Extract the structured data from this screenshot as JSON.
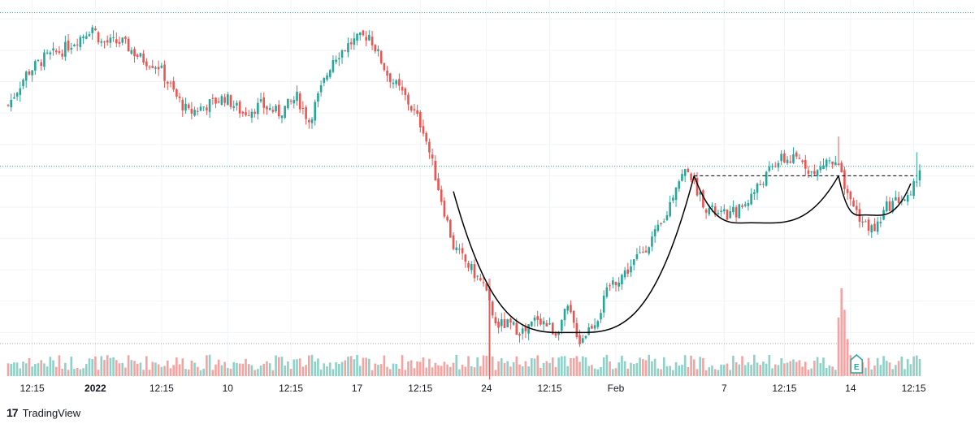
{
  "brand": {
    "logo": "17",
    "name": "TradingView"
  },
  "colors": {
    "up": "#26a69a",
    "down": "#ef5350",
    "vol_up": "#8fd0c7",
    "vol_down": "#f5a3a1",
    "grid": "#f0f3fa",
    "pattern": "#000000",
    "level": "#26a69a"
  },
  "earnings_marker": {
    "label": "E",
    "candle_index": 282
  },
  "chart_data": {
    "type": "candlestick",
    "xlabel": "",
    "ylabel": "",
    "x_tick_labels": [
      {
        "label": "12:15",
        "bold": false,
        "candle_index": 8
      },
      {
        "label": "2022",
        "bold": true,
        "candle_index": 29
      },
      {
        "label": "12:15",
        "bold": false,
        "candle_index": 51
      },
      {
        "label": "10",
        "bold": false,
        "candle_index": 73
      },
      {
        "label": "12:15",
        "bold": false,
        "candle_index": 94
      },
      {
        "label": "17",
        "bold": false,
        "candle_index": 116
      },
      {
        "label": "12:15",
        "bold": false,
        "candle_index": 137
      },
      {
        "label": "24",
        "bold": false,
        "candle_index": 159
      },
      {
        "label": "12:15",
        "bold": false,
        "candle_index": 180
      },
      {
        "label": "Feb",
        "bold": false,
        "candle_index": 202
      },
      {
        "label": "7",
        "bold": false,
        "candle_index": 238
      },
      {
        "label": "12:15",
        "bold": false,
        "candle_index": 258
      },
      {
        "label": "14",
        "bold": false,
        "candle_index": 280
      },
      {
        "label": "12:15",
        "bold": false,
        "candle_index": 301
      }
    ],
    "price_range": [
      80,
      126
    ],
    "grid": true,
    "legend": "none",
    "close_path": [
      [
        0,
        113
      ],
      [
        6,
        117
      ],
      [
        12,
        119
      ],
      [
        18,
        120
      ],
      [
        25,
        122
      ],
      [
        28,
        123
      ],
      [
        31,
        121
      ],
      [
        38,
        121
      ],
      [
        44,
        119
      ],
      [
        50,
        118
      ],
      [
        56,
        114
      ],
      [
        60,
        112
      ],
      [
        66,
        113
      ],
      [
        72,
        114
      ],
      [
        78,
        112
      ],
      [
        84,
        113
      ],
      [
        90,
        112
      ],
      [
        96,
        114
      ],
      [
        100,
        111
      ],
      [
        108,
        119
      ],
      [
        114,
        121
      ],
      [
        120,
        122
      ],
      [
        126,
        117
      ],
      [
        132,
        114
      ],
      [
        138,
        110
      ],
      [
        142,
        104
      ],
      [
        148,
        95
      ],
      [
        154,
        92
      ],
      [
        158,
        90
      ],
      [
        162,
        85
      ],
      [
        166,
        85
      ],
      [
        172,
        84
      ],
      [
        176,
        86
      ],
      [
        182,
        84
      ],
      [
        186,
        87
      ],
      [
        190,
        83
      ],
      [
        196,
        86
      ],
      [
        200,
        90
      ],
      [
        206,
        92
      ],
      [
        212,
        95
      ],
      [
        218,
        98
      ],
      [
        222,
        103
      ],
      [
        226,
        105
      ],
      [
        228,
        103
      ],
      [
        232,
        100
      ],
      [
        236,
        99
      ],
      [
        240,
        99
      ],
      [
        244,
        100
      ],
      [
        248,
        102
      ],
      [
        252,
        104
      ],
      [
        256,
        106
      ],
      [
        260,
        106
      ],
      [
        264,
        106
      ],
      [
        268,
        104
      ],
      [
        272,
        106
      ],
      [
        276,
        105
      ],
      [
        278,
        103
      ],
      [
        280,
        101
      ],
      [
        284,
        98
      ],
      [
        288,
        97
      ],
      [
        292,
        100
      ],
      [
        296,
        101
      ],
      [
        300,
        101
      ],
      [
        302,
        104
      ],
      [
        303,
        105
      ]
    ],
    "wick_spikes": [
      {
        "candle_index": 160,
        "low": 78
      },
      {
        "candle_index": 276,
        "high": 109
      },
      {
        "candle_index": 302,
        "high": 107
      }
    ],
    "volume_spikes": [
      {
        "candle_index": 160,
        "volume": 100
      },
      {
        "candle_index": 277,
        "volume": 90
      },
      {
        "candle_index": 278,
        "volume": 68
      },
      {
        "candle_index": 276,
        "volume": 60
      },
      {
        "candle_index": 279,
        "volume": 38
      }
    ],
    "annotations": [
      {
        "type": "cup",
        "start": [
          148,
          102
        ],
        "bottom": [
          187,
          84
        ],
        "end": [
          228,
          104
        ]
      },
      {
        "type": "handle-cup",
        "start": [
          228,
          104
        ],
        "bottom": [
          247,
          98
        ],
        "end": [
          276,
          104
        ]
      },
      {
        "type": "handle",
        "start": [
          276,
          104
        ],
        "bottom": [
          285,
          99
        ],
        "end": [
          300,
          103
        ]
      },
      {
        "type": "resistance",
        "price": 104,
        "from": 228,
        "to": 302,
        "style": "dashed"
      },
      {
        "type": "horizontal-dotted",
        "price": 105.2
      },
      {
        "type": "horizontal-dotted",
        "price": 124.8
      }
    ]
  }
}
